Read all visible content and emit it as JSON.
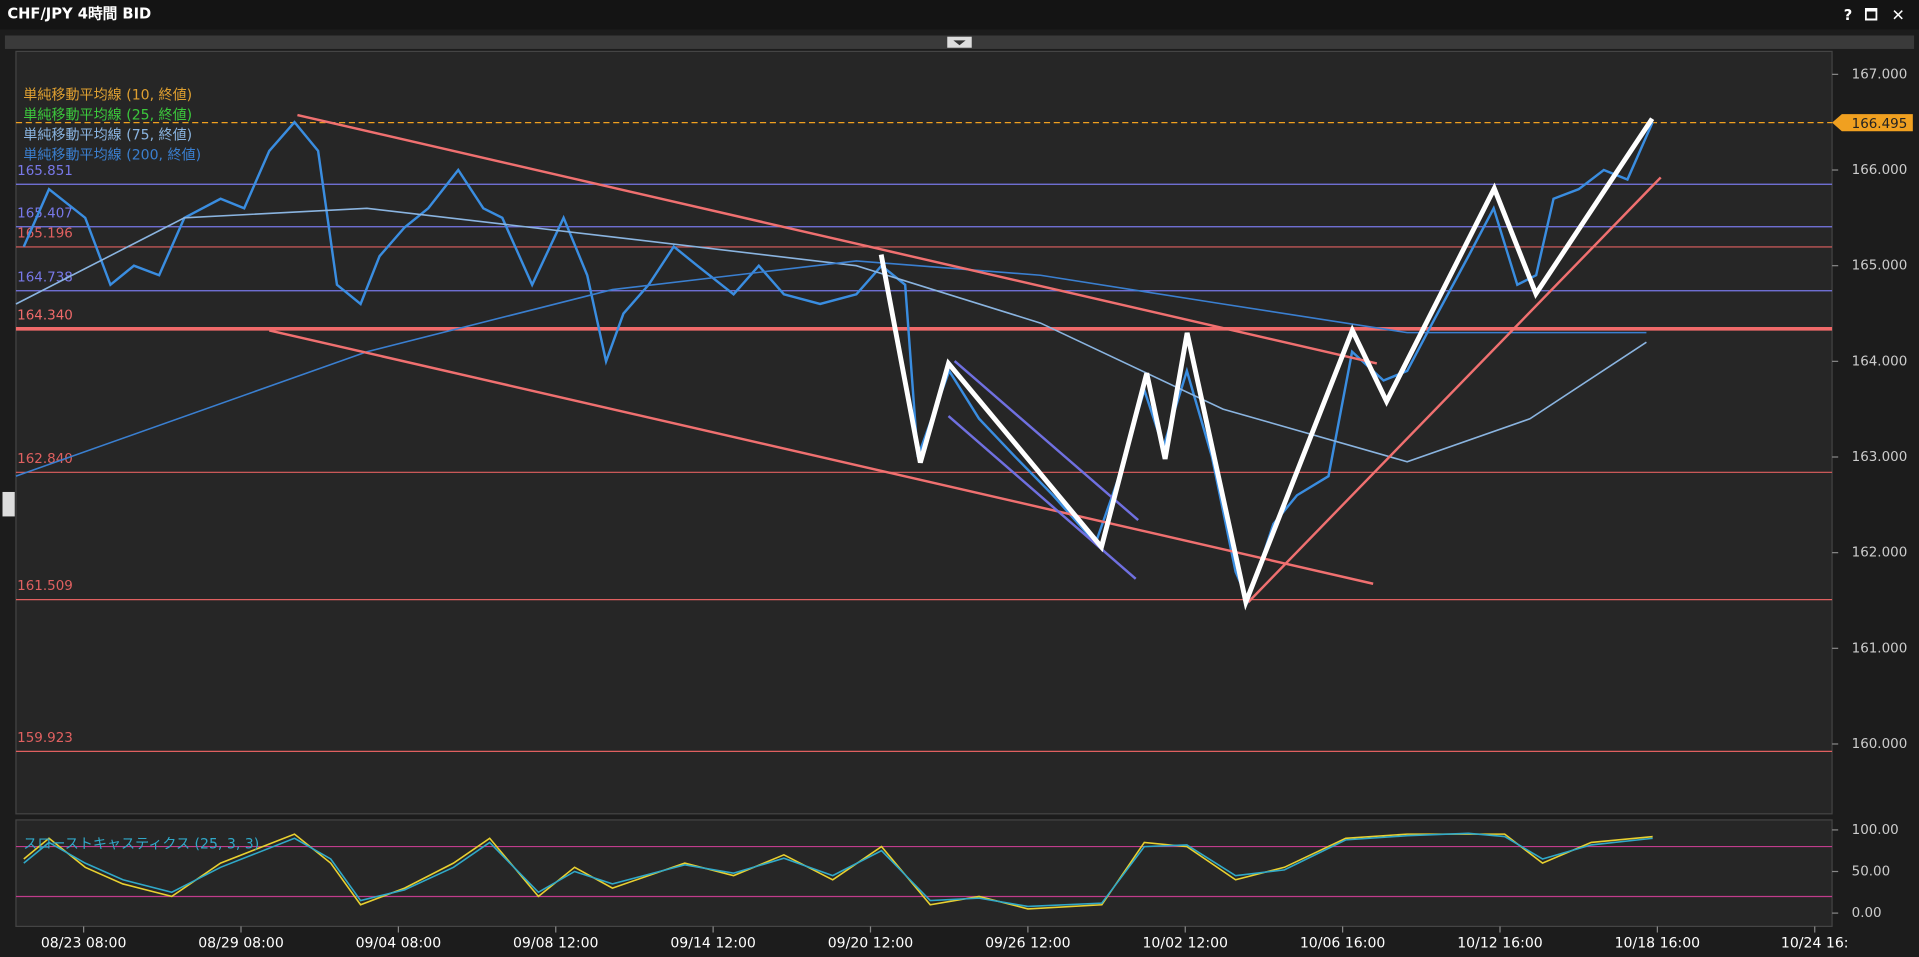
{
  "window_controls": [
    "?",
    "🗖",
    "✕"
  ],
  "chart_data": [
    {
      "type": "line",
      "title": "CHF/JPY 4時間 BID",
      "xlim": [
        0,
        115.4
      ],
      "ylim": [
        159.27,
        167.24
      ],
      "yticks": [
        {
          "value": 160,
          "label": "160.000"
        },
        {
          "value": 161,
          "label": "161.000"
        },
        {
          "value": 162,
          "label": "162.000"
        },
        {
          "value": 163,
          "label": "163.000"
        },
        {
          "value": 164,
          "label": "164.000"
        },
        {
          "value": 165,
          "label": "165.000"
        },
        {
          "value": 166,
          "label": "166.000"
        },
        {
          "value": 167,
          "label": "167.000"
        }
      ],
      "indicators": [
        {
          "name": "単純移動平均線 (10, 終値)",
          "color": "#e0a030"
        },
        {
          "name": "単純移動平均線 (25, 終値)",
          "color": "#3cc83c"
        },
        {
          "name": "単純移動平均線 (75, 終値)",
          "color": "#8ab4e0"
        },
        {
          "name": "単純移動平均線 (200, 終値)",
          "color": "#3a7fd0"
        }
      ],
      "levels": [
        {
          "value": 165.851,
          "color": "#7878e8"
        },
        {
          "value": 165.407,
          "color": "#7878e8"
        },
        {
          "value": 165.196,
          "color": "#e06060"
        },
        {
          "value": 164.738,
          "color": "#7878e8"
        },
        {
          "value": 164.34,
          "label": "164.340",
          "color": "#f06a6a",
          "line_width": 3
        },
        {
          "value": 162.84,
          "label": "162.840",
          "color": "#e06060"
        },
        {
          "value": 161.509,
          "color": "#e06060"
        },
        {
          "value": 159.923,
          "color": "#e06060"
        }
      ],
      "current_price": {
        "value": 166.495,
        "color": "#f0a020"
      },
      "x": [
        0.5,
        2.1,
        4.4,
        6.0,
        7.5,
        9.1,
        10.7,
        13.0,
        14.5,
        16.1,
        17.7,
        19.2,
        20.4,
        21.9,
        23.1,
        24.7,
        26.2,
        28.1,
        29.7,
        30.9,
        32.8,
        34.8,
        36.3,
        37.5,
        38.6,
        40.2,
        41.8,
        43.3,
        45.6,
        47.2,
        48.8,
        51.1,
        53.4,
        55.0,
        56.5,
        57.3,
        59.3,
        61.2,
        63.5,
        65.9,
        68.6,
        70.1,
        71.7,
        72.9,
        74.4,
        76.0,
        77.5,
        78.3,
        79.9,
        81.4,
        83.4,
        84.9,
        86.9,
        88.4,
        90.0,
        92.3,
        93.9,
        95.4,
        96.6,
        97.7,
        99.3,
        100.9,
        102.4,
        104.0
      ],
      "series": [
        {
          "color": "#3a8de0",
          "values": [
            165.2,
            165.8,
            165.5,
            164.8,
            165.0,
            164.9,
            165.5,
            165.7,
            165.6,
            166.2,
            166.5,
            166.2,
            164.8,
            164.6,
            165.1,
            165.4,
            165.6,
            166.0,
            165.6,
            165.5,
            164.8,
            165.5,
            164.9,
            164.0,
            164.5,
            164.8,
            165.2,
            165.0,
            164.7,
            165.0,
            164.7,
            164.6,
            164.7,
            165.0,
            164.8,
            163.0,
            163.9,
            163.4,
            163.0,
            162.6,
            162.1,
            162.8,
            163.7,
            163.1,
            163.9,
            163.0,
            161.8,
            161.5,
            162.3,
            162.6,
            162.8,
            164.1,
            163.8,
            163.9,
            164.4,
            165.1,
            165.6,
            164.8,
            164.9,
            165.7,
            165.8,
            166.0,
            165.9,
            166.5
          ]
        },
        {
          "color": "#8ab4e0",
          "x": [
            0,
            10.7,
            22.3,
            37.9,
            53.4,
            65.1,
            76.7,
            88.4,
            96.2,
            103.6
          ],
          "values": [
            164.6,
            165.5,
            165.6,
            165.3,
            165.0,
            164.4,
            163.5,
            162.95,
            163.4,
            164.2
          ]
        },
        {
          "color": "#3a7fd0",
          "x": [
            0,
            22.3,
            37.9,
            53.4,
            65.1,
            76.7,
            88.4,
            103.6
          ],
          "values": [
            162.8,
            164.1,
            164.75,
            165.05,
            164.9,
            164.6,
            164.3,
            164.3
          ]
        }
      ]
    },
    {
      "type": "line",
      "title": "スローストキャスティクス (25, 3, 3)",
      "xlim": [
        0,
        115.4
      ],
      "ylim": [
        -16,
        112
      ],
      "yticks": [
        {
          "value": 0,
          "label": "0.00"
        },
        {
          "value": 50,
          "label": "50.00"
        },
        {
          "value": 100,
          "label": "100.00"
        }
      ],
      "levels": [
        {
          "value": 80,
          "color": "#c03c8c"
        },
        {
          "value": 20,
          "color": "#c03c8c"
        }
      ],
      "xticks": [
        {
          "value": 4.3,
          "label": "08/23 08:00"
        },
        {
          "value": 14.3,
          "label": "08/29 08:00"
        },
        {
          "value": 24.3,
          "label": "09/04 08:00"
        },
        {
          "value": 34.3,
          "label": "09/08 12:00"
        },
        {
          "value": 44.3,
          "label": "09/14 12:00"
        },
        {
          "value": 54.3,
          "label": "09/20 12:00"
        },
        {
          "value": 64.3,
          "label": "09/26 12:00"
        },
        {
          "value": 74.3,
          "label": "10/02 12:00"
        },
        {
          "value": 84.3,
          "label": "10/06 16:00"
        },
        {
          "value": 94.3,
          "label": "10/12 16:00"
        },
        {
          "value": 104.3,
          "label": "10/18 16:00"
        },
        {
          "value": 114.3,
          "label": "10/24 16:"
        }
      ],
      "x": [
        0.5,
        2.1,
        4.4,
        6.8,
        9.9,
        13.0,
        17.7,
        20.0,
        21.9,
        24.7,
        27.8,
        30.1,
        33.2,
        35.5,
        37.9,
        42.5,
        45.6,
        48.8,
        51.9,
        55.0,
        58.1,
        61.2,
        64.3,
        69.0,
        71.7,
        74.4,
        77.5,
        80.6,
        84.5,
        88.4,
        92.3,
        94.6,
        97.0,
        100.1,
        104.0
      ],
      "series": [
        {
          "color": "#e8d030",
          "values": [
            65,
            90,
            55,
            35,
            20,
            60,
            95,
            60,
            10,
            30,
            60,
            90,
            20,
            55,
            30,
            60,
            45,
            70,
            40,
            80,
            10,
            20,
            5,
            10,
            85,
            80,
            40,
            55,
            90,
            95,
            95,
            95,
            60,
            85,
            92
          ]
        },
        {
          "color": "#30a8c8",
          "values": [
            60,
            85,
            60,
            40,
            25,
            55,
            90,
            65,
            15,
            28,
            55,
            85,
            25,
            50,
            35,
            58,
            48,
            66,
            45,
            75,
            15,
            18,
            8,
            12,
            80,
            82,
            45,
            52,
            88,
            93,
            96,
            92,
            65,
            82,
            90
          ]
        }
      ]
    }
  ]
}
